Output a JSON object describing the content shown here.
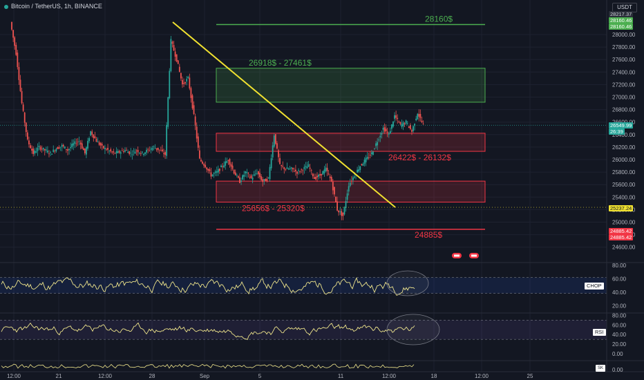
{
  "header": {
    "symbol": "Bitcoin / TetherUS, 1h, BINANCE",
    "currency": "USDT"
  },
  "price_badges": {
    "top_a": "28217.37",
    "top_b": "28160.46",
    "top_c": "28160.46",
    "current": "26549.99",
    "countdown": "26:39",
    "mid": "25237.24",
    "low_a": "24885.42",
    "low_b": "24885.42"
  },
  "levels": {
    "top_level_label": "28160$",
    "supply_zone_label": "26918$ - 27461$",
    "resistance_zone_label": "26422$ - 26132$",
    "support_zone_label": "25656$ - 25320$",
    "bottom_level_label": "24885$"
  },
  "indicators": {
    "chop_label": "CHOP",
    "rsi_label": "RSI",
    "third_label": "SK"
  },
  "colors": {
    "bg": "#131722",
    "up": "#26a69a",
    "down": "#ef5350",
    "trendline": "#f0e130",
    "level_green": "#4caf50",
    "level_red": "#f23645",
    "zone_green_label": "#4caf50",
    "zone_red_label": "#f23645",
    "indicator_line": "#f0e68c",
    "chop_band": "#2962ff",
    "rsi_band": "#7e57c2"
  },
  "chart_data": {
    "type": "candlestick",
    "price_axis": {
      "ticks": [
        "28000.00",
        "27800.00",
        "27600.00",
        "27400.00",
        "27200.00",
        "27000.00",
        "26800.00",
        "26600.00",
        "26400.00",
        "26200.00",
        "26000.00",
        "25800.00",
        "25600.00",
        "25400.00",
        "25200.00",
        "25000.00",
        "24800.00",
        "24600.00"
      ],
      "range": [
        24500,
        28330
      ]
    },
    "time_axis": {
      "ticks": [
        "12:00",
        "21",
        "12:00",
        "28",
        "Sep",
        "5",
        "11",
        "12:00",
        "18",
        "12:00",
        "25"
      ]
    },
    "price_path": [
      [
        0,
        28200
      ],
      [
        1,
        27700
      ],
      [
        2,
        26900
      ],
      [
        3,
        26300
      ],
      [
        4,
        26100
      ],
      [
        5,
        26200
      ],
      [
        6,
        26150
      ],
      [
        7,
        26100
      ],
      [
        8,
        26180
      ],
      [
        9,
        26220
      ],
      [
        10,
        26150
      ],
      [
        11,
        26250
      ],
      [
        12,
        26300
      ],
      [
        13,
        26100
      ],
      [
        14,
        26450
      ],
      [
        15,
        26300
      ],
      [
        16,
        26200
      ],
      [
        17,
        26150
      ],
      [
        18,
        26100
      ],
      [
        19,
        26120
      ],
      [
        20,
        26150
      ],
      [
        21,
        26100
      ],
      [
        22,
        26150
      ],
      [
        23,
        26100
      ],
      [
        24,
        26150
      ],
      [
        25,
        26200
      ],
      [
        26,
        26150
      ],
      [
        27,
        26080
      ],
      [
        28,
        27900
      ],
      [
        29,
        27600
      ],
      [
        30,
        27200
      ],
      [
        31,
        27300
      ],
      [
        32,
        26700
      ],
      [
        33,
        26000
      ],
      [
        34,
        25900
      ],
      [
        35,
        25750
      ],
      [
        36,
        25800
      ],
      [
        37,
        25900
      ],
      [
        38,
        26000
      ],
      [
        39,
        25800
      ],
      [
        40,
        25650
      ],
      [
        41,
        25800
      ],
      [
        42,
        25700
      ],
      [
        43,
        25800
      ],
      [
        44,
        25650
      ],
      [
        45,
        25700
      ],
      [
        46,
        26400
      ],
      [
        47,
        25900
      ],
      [
        48,
        25850
      ],
      [
        49,
        25850
      ],
      [
        50,
        25800
      ],
      [
        51,
        25850
      ],
      [
        52,
        25900
      ],
      [
        53,
        25700
      ],
      [
        54,
        25750
      ],
      [
        55,
        25850
      ],
      [
        56,
        25650
      ],
      [
        57,
        25200
      ],
      [
        58,
        25100
      ],
      [
        59,
        25600
      ],
      [
        60,
        25750
      ],
      [
        61,
        25900
      ],
      [
        62,
        26000
      ],
      [
        63,
        26100
      ],
      [
        64,
        26300
      ],
      [
        65,
        26500
      ],
      [
        66,
        26400
      ],
      [
        67,
        26700
      ],
      [
        68,
        26550
      ],
      [
        69,
        26600
      ],
      [
        70,
        26450
      ],
      [
        71,
        26750
      ],
      [
        72,
        26550
      ]
    ],
    "indicators": {
      "chop": {
        "name": "CHOP",
        "ticks": [
          "80.00",
          "60.00",
          "40.00",
          "20.00"
        ],
        "band": [
          38.2,
          61.8
        ],
        "range": [
          10,
          82
        ]
      },
      "rsi": {
        "name": "RSI",
        "ticks": [
          "80.00",
          "60.00",
          "40.00",
          "20.00",
          "0.00"
        ],
        "band": [
          30,
          70
        ],
        "range": [
          0,
          82
        ]
      },
      "third": {
        "name": "SK",
        "ticks": [
          "0.00"
        ]
      }
    }
  }
}
